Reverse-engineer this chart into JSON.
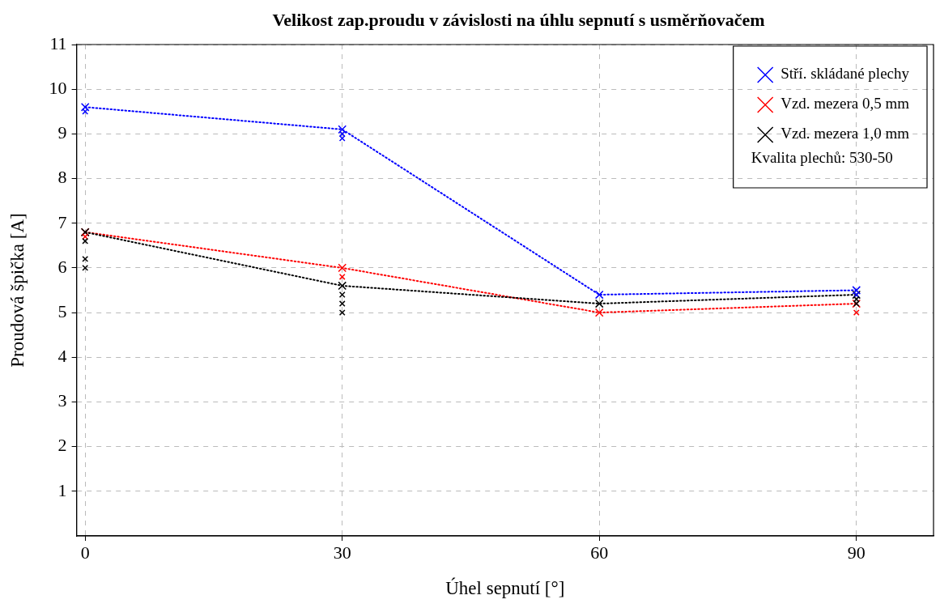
{
  "chart_data": {
    "type": "line",
    "title": "Velikost zap.proudu v závislosti na úhlu sepnutí s usměrňovačem",
    "xlabel": "Úhel sepnutí [°]",
    "ylabel": "Proudová špička [A]",
    "x": [
      0,
      30,
      60,
      90
    ],
    "xlim": [
      -1,
      99
    ],
    "xticks": [
      0,
      30,
      60,
      90
    ],
    "ylim": [
      0,
      11
    ],
    "yticks": [
      1,
      2,
      3,
      4,
      5,
      6,
      7,
      8,
      9,
      10,
      11
    ],
    "grid": true,
    "legend": "top right",
    "marker": "cross",
    "line_style": "dotted",
    "annotations": [
      "Kvalita plechů: 530-50"
    ],
    "series": [
      {
        "name": "Stří. skládané plechy",
        "color": "#0000ff",
        "values": [
          9.6,
          9.1,
          5.4,
          5.5
        ]
      },
      {
        "name": "Vzd. mezera 0,5 mm",
        "color": "#ff0000",
        "values": [
          6.8,
          6.0,
          5.0,
          5.2
        ]
      },
      {
        "name": "Vzd. mezera 1,0 mm",
        "color": "#000000",
        "values": [
          6.8,
          5.6,
          5.2,
          5.4
        ]
      },
      {
        "type": "scatter",
        "color": "#0000ff",
        "x": [
          0,
          30,
          30,
          90
        ],
        "values": [
          9.5,
          9.0,
          8.9,
          5.4
        ]
      },
      {
        "type": "scatter",
        "color": "#ff0000",
        "x": [
          0,
          30,
          90
        ],
        "values": [
          6.7,
          5.8,
          5.0
        ]
      },
      {
        "type": "scatter",
        "color": "#000000",
        "x": [
          0,
          0,
          0,
          30,
          30,
          30,
          90,
          90
        ],
        "values": [
          6.6,
          6.2,
          6.0,
          5.4,
          5.2,
          5.0,
          5.3,
          5.2
        ]
      }
    ]
  }
}
